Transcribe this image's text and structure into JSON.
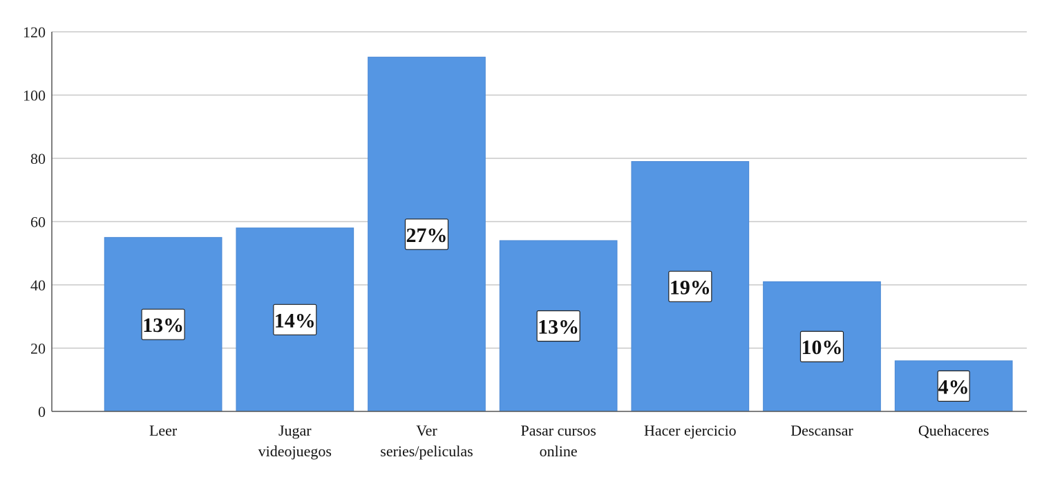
{
  "chart_data": {
    "type": "bar",
    "title": "",
    "xlabel": "",
    "ylabel": "",
    "ylim": [
      0,
      120
    ],
    "yticks": [
      0,
      20,
      40,
      60,
      80,
      100,
      120
    ],
    "grid": true,
    "bar_color": "#5596e3",
    "categories": [
      [
        "Leer"
      ],
      [
        "Jugar",
        "videojuegos"
      ],
      [
        "Ver",
        "series/peliculas"
      ],
      [
        "Pasar cursos",
        "online"
      ],
      [
        "Hacer ejercicio"
      ],
      [
        "Descansar"
      ],
      [
        "Quehaceres"
      ]
    ],
    "values": [
      55,
      58,
      112,
      54,
      79,
      41,
      16
    ],
    "data_labels": [
      "13%",
      "14%",
      "27%",
      "13%",
      "19%",
      "10%",
      "4%"
    ]
  }
}
